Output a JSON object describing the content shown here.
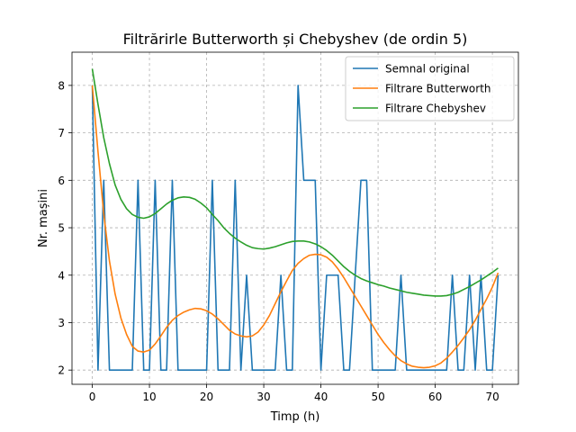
{
  "chart_data": {
    "type": "line",
    "title": "Filtrărirle Butterworth și Chebyshev (de ordin 5)",
    "xlabel": "Timp (h)",
    "ylabel": "Nr. mașini",
    "xlim": [
      -3.55,
      74.55
    ],
    "ylim": [
      1.7,
      8.7
    ],
    "xticks": [
      0,
      10,
      20,
      30,
      40,
      50,
      60,
      70
    ],
    "yticks": [
      2,
      3,
      4,
      5,
      6,
      7,
      8
    ],
    "grid": true,
    "legend_position": "top-right",
    "series": [
      {
        "name": "Semnal original",
        "color": "#1f77b4",
        "x": [
          0,
          1,
          2,
          3,
          4,
          5,
          6,
          7,
          8,
          9,
          10,
          11,
          12,
          13,
          14,
          15,
          16,
          17,
          18,
          19,
          20,
          21,
          22,
          23,
          24,
          25,
          26,
          27,
          28,
          29,
          30,
          31,
          32,
          33,
          34,
          35,
          36,
          37,
          38,
          39,
          40,
          41,
          42,
          43,
          44,
          45,
          46,
          47,
          48,
          49,
          50,
          51,
          52,
          53,
          54,
          55,
          56,
          57,
          58,
          59,
          60,
          61,
          62,
          63,
          64,
          65,
          66,
          67,
          68,
          69,
          70,
          71
        ],
        "values": [
          8,
          2,
          6,
          2,
          2,
          2,
          2,
          2,
          6,
          2,
          2,
          6,
          2,
          2,
          6,
          2,
          2,
          2,
          2,
          2,
          2,
          6,
          2,
          2,
          2,
          6,
          2,
          4,
          2,
          2,
          2,
          2,
          2,
          4,
          2,
          2,
          8,
          6,
          6,
          6,
          2,
          4,
          4,
          4,
          2,
          2,
          4,
          6,
          6,
          2,
          2,
          2,
          2,
          2,
          4,
          2,
          2,
          2,
          2,
          2,
          2,
          2,
          2,
          4,
          2,
          2,
          4,
          2,
          4,
          2,
          2,
          4
        ]
      },
      {
        "name": "Filtrare Butterworth",
        "color": "#ff7f0e",
        "x": [
          0,
          1,
          2,
          3,
          4,
          5,
          6,
          7,
          8,
          9,
          10,
          11,
          12,
          13,
          14,
          15,
          16,
          17,
          18,
          19,
          20,
          21,
          22,
          23,
          24,
          25,
          26,
          27,
          28,
          29,
          30,
          31,
          32,
          33,
          34,
          35,
          36,
          37,
          38,
          39,
          40,
          41,
          42,
          43,
          44,
          45,
          46,
          47,
          48,
          49,
          50,
          51,
          52,
          53,
          54,
          55,
          56,
          57,
          58,
          59,
          60,
          61,
          62,
          63,
          64,
          65,
          66,
          67,
          68,
          69,
          70,
          71
        ],
        "values": [
          8.0,
          6.6,
          5.3,
          4.3,
          3.6,
          3.1,
          2.75,
          2.5,
          2.4,
          2.38,
          2.42,
          2.55,
          2.72,
          2.9,
          3.05,
          3.15,
          3.22,
          3.27,
          3.3,
          3.29,
          3.25,
          3.18,
          3.08,
          2.96,
          2.84,
          2.76,
          2.72,
          2.7,
          2.72,
          2.8,
          2.95,
          3.15,
          3.4,
          3.65,
          3.88,
          4.1,
          4.25,
          4.35,
          4.42,
          4.44,
          4.43,
          4.38,
          4.28,
          4.13,
          3.95,
          3.75,
          3.55,
          3.35,
          3.15,
          2.95,
          2.75,
          2.58,
          2.43,
          2.3,
          2.2,
          2.13,
          2.08,
          2.06,
          2.05,
          2.06,
          2.09,
          2.15,
          2.25,
          2.38,
          2.52,
          2.68,
          2.85,
          3.05,
          3.28,
          3.5,
          3.75,
          4.05
        ]
      },
      {
        "name": "Filtrare Chebyshev",
        "color": "#2ca02c",
        "x": [
          0,
          1,
          2,
          3,
          4,
          5,
          6,
          7,
          8,
          9,
          10,
          11,
          12,
          13,
          14,
          15,
          16,
          17,
          18,
          19,
          20,
          21,
          22,
          23,
          24,
          25,
          26,
          27,
          28,
          29,
          30,
          31,
          32,
          33,
          34,
          35,
          36,
          37,
          38,
          39,
          40,
          41,
          42,
          43,
          44,
          45,
          46,
          47,
          48,
          49,
          50,
          51,
          52,
          53,
          54,
          55,
          56,
          57,
          58,
          59,
          60,
          61,
          62,
          63,
          64,
          65,
          66,
          67,
          68,
          69,
          70,
          71
        ],
        "values": [
          8.35,
          7.6,
          6.9,
          6.35,
          5.9,
          5.6,
          5.4,
          5.28,
          5.22,
          5.2,
          5.23,
          5.3,
          5.4,
          5.5,
          5.58,
          5.63,
          5.65,
          5.64,
          5.6,
          5.52,
          5.42,
          5.28,
          5.15,
          5.0,
          4.88,
          4.78,
          4.7,
          4.63,
          4.58,
          4.56,
          4.55,
          4.57,
          4.6,
          4.64,
          4.68,
          4.71,
          4.72,
          4.72,
          4.7,
          4.66,
          4.6,
          4.52,
          4.42,
          4.3,
          4.18,
          4.08,
          4.0,
          3.93,
          3.88,
          3.84,
          3.8,
          3.77,
          3.73,
          3.7,
          3.67,
          3.64,
          3.62,
          3.6,
          3.58,
          3.57,
          3.56,
          3.56,
          3.57,
          3.6,
          3.64,
          3.7,
          3.76,
          3.83,
          3.9,
          3.98,
          4.06,
          4.15
        ]
      }
    ]
  }
}
